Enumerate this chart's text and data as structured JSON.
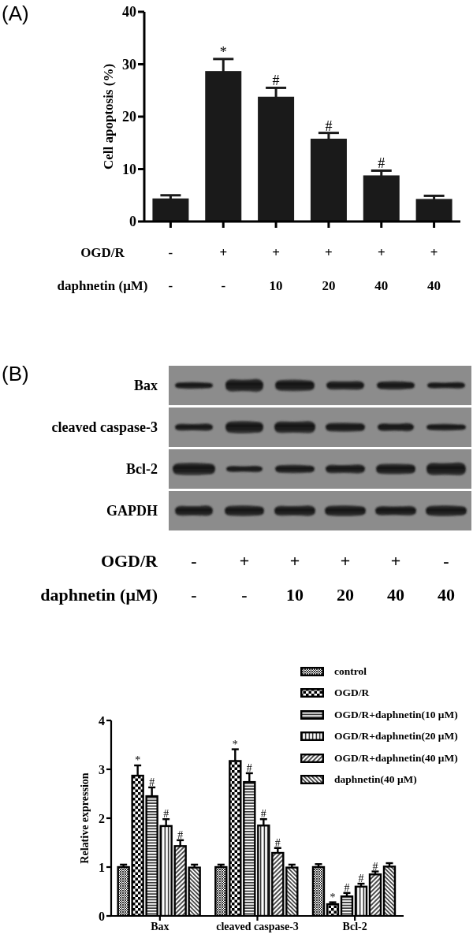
{
  "chart_data": [
    {
      "type": "bar",
      "title": "(A)",
      "ylabel": "Cell apoptosis (%)",
      "categories": [
        null,
        null,
        null,
        null,
        null,
        null
      ],
      "values": [
        4.4,
        28.7,
        23.8,
        15.8,
        8.8,
        4.3
      ],
      "errors": [
        0.6,
        2.3,
        1.7,
        1.1,
        0.9,
        0.6
      ],
      "value_labels": [
        null,
        "*",
        "#",
        "#",
        "#",
        null
      ],
      "color": "#1a1a1a",
      "ylim": [
        0,
        40
      ],
      "yticks": [
        0,
        10,
        20,
        30,
        40
      ],
      "annotations": [
        "OGD/R",
        "-",
        "+",
        "+",
        "+",
        "+",
        "+",
        "daphnetin (μM)",
        "-",
        "-",
        "10",
        "20",
        "40",
        "40"
      ]
    },
    {
      "type": "other",
      "title": "(B)",
      "y_categories": [
        "Bax",
        "cleaved caspase-3",
        "Bcl-2",
        "GAPDH"
      ],
      "categories": [
        null,
        null,
        null,
        null,
        null,
        null
      ],
      "annotations": [
        "OGD/R",
        "-",
        "+",
        "+",
        "+",
        "+",
        "-",
        "daphnetin (μM)",
        "-",
        "-",
        "10",
        "20",
        "40",
        "40"
      ]
    },
    {
      "type": "bar",
      "ylabel": "Relative expression",
      "categories": [
        "Bax",
        "cleaved caspase-3",
        "Bcl-2"
      ],
      "series": [
        {
          "name": "control",
          "color": "#000000",
          "values": [
            1.0,
            1.0,
            1.0
          ],
          "errors": [
            0.05,
            0.05,
            0.06
          ]
        },
        {
          "name": "OGD/R",
          "color": "#000000",
          "values": [
            2.87,
            3.17,
            0.24
          ],
          "errors": [
            0.21,
            0.24,
            0.04
          ],
          "value_labels": [
            "*",
            "*",
            "*"
          ]
        },
        {
          "name": "OGD/R+daphnetin(10 μM)",
          "color": "#000000",
          "values": [
            2.45,
            2.74,
            0.4
          ],
          "errors": [
            0.18,
            0.18,
            0.07
          ],
          "value_labels": [
            "#",
            "#",
            "#"
          ]
        },
        {
          "name": "OGD/R+daphnetin(20 μM)",
          "color": "#000000",
          "values": [
            1.84,
            1.85,
            0.6
          ],
          "errors": [
            0.14,
            0.13,
            0.06
          ],
          "value_labels": [
            "#",
            "#",
            "#"
          ]
        },
        {
          "name": "OGD/R+daphnetin(40 μM)",
          "color": "#000000",
          "values": [
            1.43,
            1.29,
            0.85
          ],
          "errors": [
            0.12,
            0.1,
            0.06
          ],
          "value_labels": [
            "#",
            "#",
            "#"
          ]
        },
        {
          "name": "daphnetin(40 μM)",
          "color": "#000000",
          "values": [
            0.99,
            0.99,
            1.01
          ],
          "errors": [
            0.06,
            0.06,
            0.07
          ]
        }
      ],
      "ylim": [
        0,
        4
      ],
      "yticks": [
        0,
        1,
        2,
        3,
        4
      ],
      "legend": "top right"
    }
  ]
}
